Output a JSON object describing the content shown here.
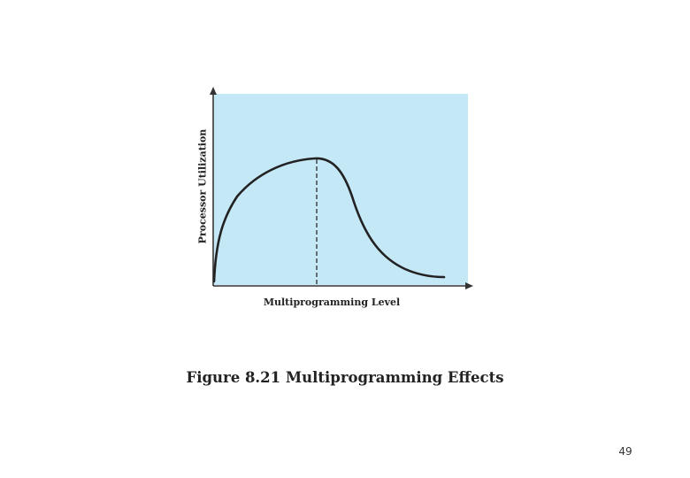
{
  "figure": {
    "ylabel": "Processor Utilization",
    "xlabel": "Multiprogramming Level",
    "caption": "Figure 8.21 Multiprogramming Effects",
    "plot_background": "#c5e8f7",
    "curve_color": "#222222"
  },
  "page_number": "49"
}
